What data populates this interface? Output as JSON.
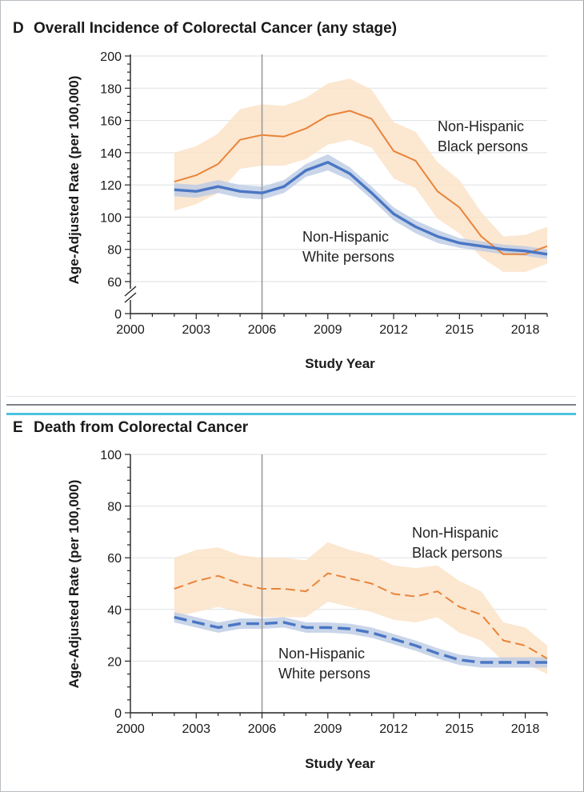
{
  "colors": {
    "black_series": "#e8843a",
    "black_band": "#fbe3c8",
    "white_series": "#4a76c4",
    "white_band": "#bccbe3",
    "grid": "#dde0e3",
    "marker_line": "#9a9a9a"
  },
  "chart_data": [
    {
      "type": "line",
      "panel_letter": "D",
      "title": "Overall Incidence of Colorectal Cancer (any stage)",
      "xlabel": "Study Year",
      "ylabel": "Age-Adjusted Rate (per 100,000)",
      "xlim": [
        2000,
        2019
      ],
      "x_ticks": [
        "2000",
        "2003",
        "2006",
        "2009",
        "2012",
        "2015",
        "2018"
      ],
      "y_ticks": [
        "0",
        "60",
        "80",
        "100",
        "120",
        "140",
        "160",
        "180",
        "200"
      ],
      "y_axis_break": true,
      "ylim": [
        60,
        200
      ],
      "reference_line_x": 2006,
      "line_style": "solid",
      "x": [
        2002,
        2003,
        2004,
        2005,
        2006,
        2007,
        2008,
        2009,
        2010,
        2011,
        2012,
        2013,
        2014,
        2015,
        2016,
        2017,
        2018,
        2019
      ],
      "series": [
        {
          "name": "Non-Hispanic Black persons",
          "label_lines": [
            "Non-Hispanic",
            "Black persons"
          ],
          "values": [
            122,
            126,
            133,
            148,
            151,
            150,
            155,
            163,
            166,
            161,
            141,
            135,
            116,
            106,
            88,
            77,
            77,
            82
          ],
          "ci_upper": [
            140,
            144,
            152,
            167,
            170,
            169,
            174,
            183,
            186,
            179,
            159,
            153,
            134,
            123,
            103,
            88,
            89,
            94
          ],
          "ci_lower": [
            104,
            108,
            115,
            130,
            132,
            132,
            136,
            145,
            148,
            143,
            124,
            118,
            99,
            90,
            75,
            66,
            66,
            71
          ]
        },
        {
          "name": "Non-Hispanic White persons",
          "label_lines": [
            "Non-Hispanic",
            "White persons"
          ],
          "values": [
            117,
            116,
            119,
            116,
            115,
            119,
            129,
            134,
            127,
            115,
            102,
            94,
            88,
            84,
            82,
            80,
            79,
            77
          ],
          "ci_upper": [
            121,
            120,
            123,
            120,
            119,
            123,
            133,
            139,
            131,
            119,
            106,
            98,
            92,
            87,
            85,
            83,
            82,
            80
          ],
          "ci_lower": [
            113,
            112,
            115,
            112,
            111,
            115,
            125,
            129,
            123,
            111,
            98,
            90,
            84,
            81,
            79,
            77,
            76,
            74
          ]
        }
      ]
    },
    {
      "type": "line",
      "panel_letter": "E",
      "title": "Death from Colorectal Cancer",
      "xlabel": "Study Year",
      "ylabel": "Age-Adjusted Rate (per 100,000)",
      "xlim": [
        2000,
        2019
      ],
      "x_ticks": [
        "2000",
        "2003",
        "2006",
        "2009",
        "2012",
        "2015",
        "2018"
      ],
      "y_ticks": [
        "0",
        "20",
        "40",
        "60",
        "80",
        "100"
      ],
      "ylim": [
        0,
        100
      ],
      "reference_line_x": 2006,
      "line_style": "dashed",
      "x": [
        2002,
        2003,
        2004,
        2005,
        2006,
        2007,
        2008,
        2009,
        2010,
        2011,
        2012,
        2013,
        2014,
        2015,
        2016,
        2017,
        2018,
        2019
      ],
      "series": [
        {
          "name": "Non-Hispanic Black persons",
          "label_lines": [
            "Non-Hispanic",
            "Black persons"
          ],
          "values": [
            48,
            51,
            53,
            50,
            48,
            48,
            47,
            54,
            52,
            50,
            46,
            45,
            47,
            41,
            38,
            28,
            26,
            21
          ],
          "ci_upper": [
            60,
            63,
            64,
            61,
            60,
            60,
            59,
            66,
            63,
            61,
            57,
            56,
            57,
            51,
            47,
            35,
            33,
            26
          ],
          "ci_lower": [
            37,
            39,
            41,
            39,
            37,
            37,
            37,
            43,
            41,
            39,
            36,
            35,
            37,
            31,
            28,
            20,
            19,
            15
          ]
        },
        {
          "name": "Non-Hispanic White persons",
          "label_lines": [
            "Non-Hispanic",
            "White persons"
          ],
          "values": [
            37,
            35,
            33,
            34.5,
            34.5,
            35,
            33,
            33,
            32.5,
            31,
            28.5,
            26,
            23,
            20.5,
            19.5,
            19.5,
            19.5,
            19.5
          ],
          "ci_upper": [
            39,
            37,
            35,
            36.5,
            36.5,
            37,
            35,
            35,
            34.5,
            33,
            30.5,
            28,
            25,
            22.5,
            21.5,
            21.5,
            21.5,
            21.5
          ],
          "ci_lower": [
            35,
            33,
            31,
            32.5,
            32.5,
            33,
            31,
            31,
            30.5,
            29,
            26.5,
            24,
            21,
            18.5,
            17.5,
            17.5,
            17.5,
            17.5
          ]
        }
      ]
    }
  ]
}
